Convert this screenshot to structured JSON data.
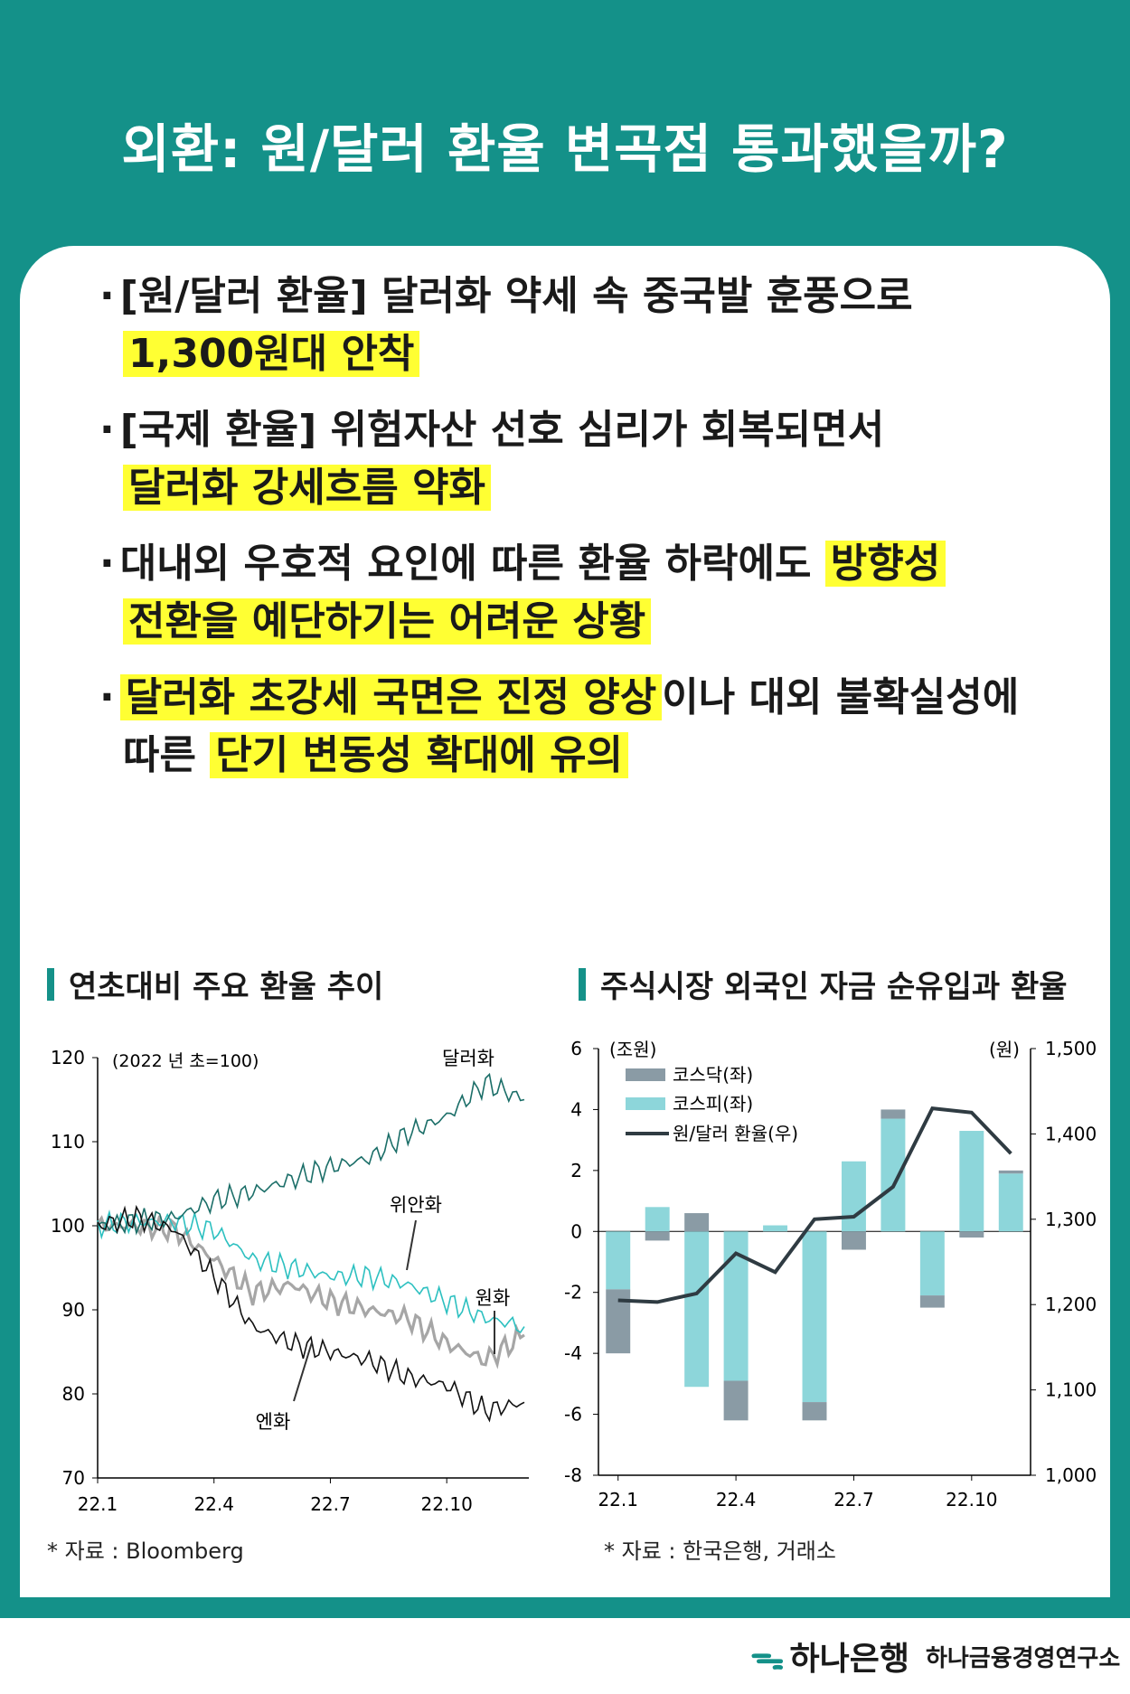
{
  "header": {
    "title": "외환: 원/달러 환율 변곡점 통과했을까?"
  },
  "bullets": [
    {
      "line1": "[원/달러 환율] 달러화 약세 속 중국발 훈풍으로",
      "line2_hl": "1,300원대 안착"
    },
    {
      "line1": "[국제 환율] 위험자산 선호 심리가 회복되면서",
      "line2_hl": "달러화 강세흐름 약화"
    },
    {
      "line1_plain": "대내외 우호적 요인에 따른 환율 하락에도 ",
      "line1_hl": "방향성",
      "line2_hl": "전환을 예단하기는 어려운 상황"
    },
    {
      "line1_hl": "달러화 초강세 국면은 진정 양상",
      "line1_plain": "이나 대외 불확실성에",
      "line2_plain": "따른 ",
      "line2_hl": "단기 변동성 확대에 유의"
    }
  ],
  "colors": {
    "brand": "#149189",
    "highlight": "#ffff33",
    "dollar": "#1b6e68",
    "yuan": "#2cc0c0",
    "won": "#a6a6a6",
    "yen": "#111111",
    "kosdaq": "#8a9ba5",
    "kospi": "#8dd6da"
  },
  "chart_data": [
    {
      "type": "line",
      "title": "연초대비 주요 환율 추이",
      "note": "(2022 년 초=100)",
      "ylim": [
        70,
        120
      ],
      "yticks": [
        "120",
        "110",
        "100",
        "90",
        "80",
        "70"
      ],
      "xticks": [
        "22.1",
        "22.4",
        "22.7",
        "22.10"
      ],
      "x": [
        "22.1",
        "22.2",
        "22.3",
        "22.4",
        "22.5",
        "22.6",
        "22.7",
        "22.8",
        "22.9",
        "22.10",
        "22.11",
        "22.12"
      ],
      "series": [
        {
          "name": "달러화",
          "values": [
            100,
            100.5,
            101,
            103,
            104,
            105.5,
            107,
            108,
            111,
            113,
            117,
            115
          ]
        },
        {
          "name": "위안화",
          "values": [
            100,
            100.5,
            100.5,
            99.5,
            96,
            95,
            94,
            94,
            93,
            91,
            89,
            88
          ]
        },
        {
          "name": "원화",
          "values": [
            100,
            100,
            99.5,
            96,
            92,
            93,
            91,
            90,
            89,
            86,
            84,
            87
          ]
        },
        {
          "name": "엔화",
          "values": [
            100,
            101,
            99.5,
            94,
            88,
            86,
            85,
            84,
            82,
            81,
            78,
            79
          ]
        }
      ],
      "annotations": [
        "달러화",
        "위안화",
        "원화",
        "엔화"
      ],
      "source": "* 자료 : Bloomberg"
    },
    {
      "type": "bar",
      "title": "주식시장 외국인 자금 순유입과 환율",
      "left_unit": "(조원)",
      "right_unit": "(원)",
      "ylim": [
        -8,
        6
      ],
      "yticks": [
        "6",
        "4",
        "2",
        "0",
        "-2",
        "-4",
        "-6",
        "-8"
      ],
      "y2lim": [
        1000,
        1500
      ],
      "y2ticks": [
        "1,500",
        "1,400",
        "1,300",
        "1,200",
        "1,100",
        "1,000"
      ],
      "categories": [
        "22.1",
        "22.2",
        "22.3",
        "22.4",
        "22.5",
        "22.6",
        "22.7",
        "22.8",
        "22.9",
        "22.10",
        "22.11"
      ],
      "xticks": [
        "22.1",
        "22.4",
        "22.7",
        "22.10"
      ],
      "series": [
        {
          "name": "코스닥(좌)",
          "values": [
            -2.1,
            -0.3,
            0.6,
            -1.3,
            0.0,
            -0.6,
            -0.6,
            0.3,
            -0.4,
            -0.2,
            0.1
          ]
        },
        {
          "name": "코스피(좌)",
          "values": [
            -1.9,
            0.8,
            -5.1,
            -4.9,
            0.2,
            -5.6,
            2.3,
            3.7,
            -2.1,
            3.3,
            1.9
          ]
        },
        {
          "name": "원/달러 환율(우)",
          "values": [
            1205,
            1203,
            1213,
            1260,
            1238,
            1300,
            1303,
            1338,
            1430,
            1425,
            1377
          ]
        }
      ],
      "source": "* 자료 : 한국은행, 거래소"
    }
  ],
  "footer": {
    "bank": "하나은행",
    "institute": "하나금융경영연구소"
  }
}
